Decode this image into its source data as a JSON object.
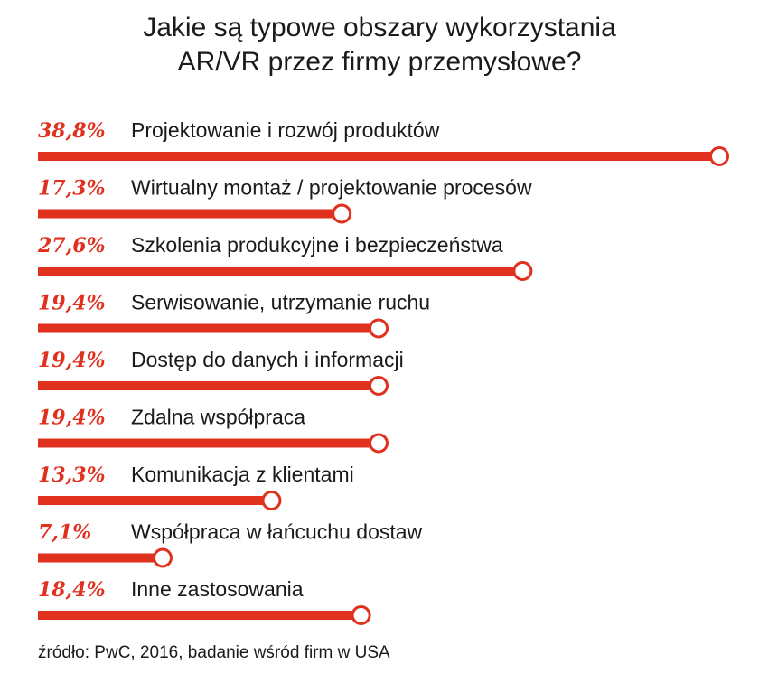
{
  "colors": {
    "accent": "#e0301e",
    "text": "#1a1a1a",
    "background": "#ffffff"
  },
  "chart_data": {
    "type": "bar",
    "orientation": "horizontal",
    "title_lines": [
      "Jakie są typowe obszary wykorzystania",
      "AR/VR przez firmy przemysłowe?"
    ],
    "unit": "%",
    "categories": [
      "Projektowanie i rozwój produktów",
      "Wirtualny montaż / projektowanie procesów",
      "Szkolenia produkcyjne i bezpieczeństwa",
      "Serwisowanie, utrzymanie ruchu",
      "Dostęp do danych i informacji",
      "Zdalna współpraca",
      "Komunikacja z klientami",
      "Współpraca w łańcuchu dostaw",
      "Inne zastosowania"
    ],
    "values": [
      38.8,
      17.3,
      27.6,
      19.4,
      19.4,
      19.4,
      13.3,
      7.1,
      18.4
    ],
    "value_labels": [
      "38,8%",
      "17,3%",
      "27,6%",
      "19,4%",
      "19,4%",
      "19,4%",
      "13,3%",
      "7,1%",
      "18,4%"
    ],
    "xlim": [
      0,
      38.8
    ],
    "grid": false,
    "legend": "none"
  },
  "source": "źródło: PwC, 2016, badanie wśród firm w USA"
}
